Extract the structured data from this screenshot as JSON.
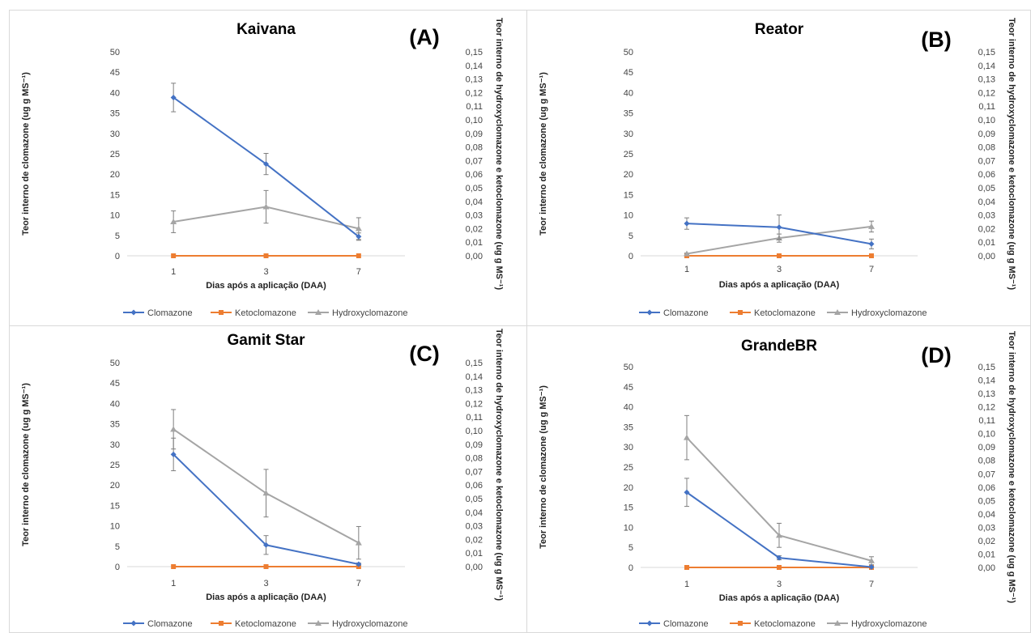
{
  "legend": {
    "entries": [
      {
        "name": "Clomazone",
        "color": "#4472c4",
        "marker": "diamond"
      },
      {
        "name": "Ketoclomazone",
        "color": "#ed7d31",
        "marker": "square"
      },
      {
        "name": "Hydroxyclomazone",
        "color": "#a5a5a5",
        "marker": "triangle"
      }
    ]
  },
  "chart_data": [
    {
      "type": "line",
      "title": "Kaivana",
      "panel_label": "(A)",
      "xlabel": "Dias após a aplicação (DAA)",
      "ylabel_left": "Teor interno de clomazone (ug g MS⁻¹)",
      "ylabel_right": "Teor interno de hydroxyclomazone e ketoclomazone (ug g MS⁻¹)",
      "categories": [
        "1",
        "3",
        "7"
      ],
      "ylim_left": [
        0,
        50
      ],
      "ylim_right": [
        0,
        0.15
      ],
      "yticks_left": [
        "0",
        "5",
        "10",
        "15",
        "20",
        "25",
        "30",
        "35",
        "40",
        "45",
        "50"
      ],
      "yticks_right": [
        "0,00",
        "0,01",
        "0,02",
        "0,03",
        "0,04",
        "0,05",
        "0,06",
        "0,07",
        "0,08",
        "0,09",
        "0,10",
        "0,11",
        "0,12",
        "0,13",
        "0,14",
        "0,15"
      ],
      "series": [
        {
          "name": "Clomazone",
          "axis": "left",
          "values": [
            38.8,
            22.5,
            4.7
          ],
          "errors": [
            3.5,
            2.6,
            0.9
          ]
        },
        {
          "name": "Ketoclomazone",
          "axis": "right",
          "values": [
            0,
            0,
            0
          ],
          "errors": [
            0,
            0,
            0
          ]
        },
        {
          "name": "Hydroxyclomazone",
          "axis": "right",
          "values": [
            0.025,
            0.036,
            0.02
          ],
          "errors": [
            0.008,
            0.012,
            0.008
          ]
        }
      ]
    },
    {
      "type": "line",
      "title": "Reator",
      "panel_label": "(B)",
      "xlabel": "Dias após a aplicação (DAA)",
      "ylabel_left": "Teor interno de clomazone (ug g MS⁻¹)",
      "ylabel_right": "Teor interno de hydroxyclomazone e ketoclomazone (ug g MS⁻¹)",
      "categories": [
        "1",
        "3",
        "7"
      ],
      "ylim_left": [
        0,
        50
      ],
      "ylim_right": [
        0,
        0.15
      ],
      "yticks_left": [
        "0",
        "5",
        "10",
        "15",
        "20",
        "25",
        "30",
        "35",
        "40",
        "45",
        "50"
      ],
      "yticks_right": [
        "0,00",
        "0,01",
        "0,02",
        "0,03",
        "0,04",
        "0,05",
        "0,06",
        "0,07",
        "0,08",
        "0,09",
        "0,10",
        "0,11",
        "0,12",
        "0,13",
        "0,14",
        "0,15"
      ],
      "series": [
        {
          "name": "Clomazone",
          "axis": "left",
          "values": [
            7.9,
            7.0,
            2.9
          ],
          "errors": [
            1.4,
            3.0,
            1.2
          ]
        },
        {
          "name": "Ketoclomazone",
          "axis": "right",
          "values": [
            0,
            0,
            0
          ],
          "errors": [
            0,
            0,
            0
          ]
        },
        {
          "name": "Hydroxyclomazone",
          "axis": "right",
          "values": [
            0.0015,
            0.013,
            0.0215
          ],
          "errors": [
            0.0005,
            0.003,
            0.004
          ]
        }
      ]
    },
    {
      "type": "line",
      "title": "Gamit Star",
      "panel_label": "(C)",
      "xlabel": "Dias após a aplicação (DAA)",
      "ylabel_left": "Teor interno de clomazone (ug g MS⁻¹)",
      "ylabel_right": "Teor interno de hydroxyclomazone e ketoclomazone (ug g MS⁻¹)",
      "categories": [
        "1",
        "3",
        "7"
      ],
      "ylim_left": [
        0,
        50
      ],
      "ylim_right": [
        0,
        0.15
      ],
      "yticks_left": [
        "0",
        "5",
        "10",
        "15",
        "20",
        "25",
        "30",
        "35",
        "40",
        "45",
        "50"
      ],
      "yticks_right": [
        "0,00",
        "0,01",
        "0,02",
        "0,03",
        "0,04",
        "0,05",
        "0,06",
        "0,07",
        "0,08",
        "0,09",
        "0,10",
        "0,11",
        "0,12",
        "0,13",
        "0,14",
        "0,15"
      ],
      "series": [
        {
          "name": "Clomazone",
          "axis": "left",
          "values": [
            27.5,
            5.3,
            0.6
          ],
          "errors": [
            4.0,
            2.3,
            0.3
          ]
        },
        {
          "name": "Ketoclomazone",
          "axis": "right",
          "values": [
            0,
            0,
            0
          ],
          "errors": [
            0,
            0,
            0
          ]
        },
        {
          "name": "Hydroxyclomazone",
          "axis": "right",
          "values": [
            0.101,
            0.054,
            0.0175
          ],
          "errors": [
            0.0145,
            0.0175,
            0.012
          ]
        }
      ]
    },
    {
      "type": "line",
      "title": "GrandeBR",
      "panel_label": "(D)",
      "xlabel": "Dias após a aplicação (DAA)",
      "ylabel_left": "Teor interno de clomazone (ug g MS⁻¹)",
      "ylabel_right": "Teor interno de hydroxyclomazone e ketoclomazone (ug g MS⁻¹)",
      "categories": [
        "1",
        "3",
        "7"
      ],
      "ylim_left": [
        0,
        50
      ],
      "ylim_right": [
        0,
        0.15
      ],
      "yticks_left": [
        "0",
        "5",
        "10",
        "15",
        "20",
        "25",
        "30",
        "35",
        "40",
        "45",
        "50"
      ],
      "yticks_right": [
        "0,00",
        "0,01",
        "0,02",
        "0,03",
        "0,04",
        "0,05",
        "0,06",
        "0,07",
        "0,08",
        "0,09",
        "0,10",
        "0,11",
        "0,12",
        "0,13",
        "0,14",
        "0,15"
      ],
      "series": [
        {
          "name": "Clomazone",
          "axis": "left",
          "values": [
            18.7,
            2.4,
            0.1
          ],
          "errors": [
            3.5,
            0.5,
            0.2
          ]
        },
        {
          "name": "Ketoclomazone",
          "axis": "right",
          "values": [
            0,
            0,
            0
          ],
          "errors": [
            0,
            0,
            0
          ]
        },
        {
          "name": "Hydroxyclomazone",
          "axis": "right",
          "values": [
            0.097,
            0.024,
            0.005
          ],
          "errors": [
            0.0165,
            0.009,
            0.003
          ]
        }
      ]
    }
  ]
}
